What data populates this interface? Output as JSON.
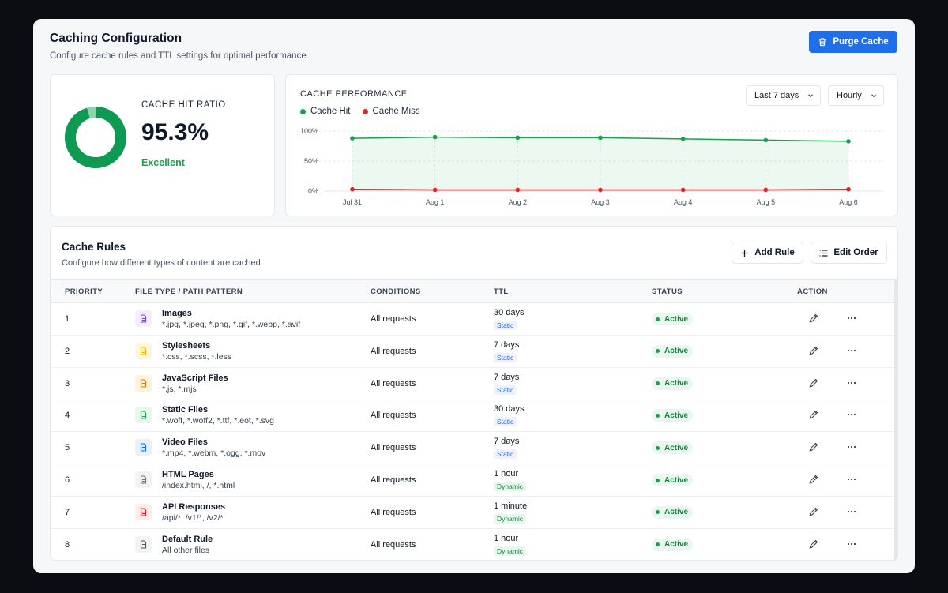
{
  "header": {
    "title": "Caching Configuration",
    "subtitle": "Configure cache rules and TTL settings for optimal performance",
    "purge_label": "Purge Cache"
  },
  "hit_ratio": {
    "label": "CACHE HIT RATIO",
    "value": "95.3%",
    "status": "Excellent",
    "fraction": 0.953
  },
  "performance": {
    "title": "CACHE PERFORMANCE",
    "range_select": "Last 7 days",
    "interval_select": "Hourly",
    "legend": [
      {
        "label": "Cache Hit",
        "color": "#16a34a"
      },
      {
        "label": "Cache Miss",
        "color": "#dc2626"
      }
    ]
  },
  "chart_data": {
    "type": "area",
    "categories": [
      "Jul 31",
      "Aug 1",
      "Aug 2",
      "Aug 3",
      "Aug 4",
      "Aug 5",
      "Aug 6"
    ],
    "y_ticks": [
      "100%",
      "50%",
      "0%"
    ],
    "ylim": [
      0,
      100
    ],
    "series": [
      {
        "name": "Cache Hit",
        "color": "#16a34a",
        "values": [
          88,
          90,
          89,
          89,
          87,
          85,
          83
        ]
      },
      {
        "name": "Cache Miss",
        "color": "#dc2626",
        "values": [
          3,
          2,
          2,
          2,
          2,
          2,
          3
        ]
      }
    ],
    "grid": true
  },
  "rules": {
    "title": "Cache Rules",
    "subtitle": "Configure how different types of content are cached",
    "add_label": "Add Rule",
    "edit_order_label": "Edit Order",
    "columns": {
      "priority": "PRIORITY",
      "file_type": "FILE TYPE / PATH PATTERN",
      "conditions": "CONDITIONS",
      "ttl": "TTL",
      "status": "STATUS",
      "action": "ACTION"
    },
    "rows": [
      {
        "priority": "1",
        "name": "Images",
        "pattern": "*.jpg, *.jpeg, *.png, *.gif, *.webp, *.avif",
        "conditions": "All requests",
        "ttl": "30 days",
        "tag": "Static",
        "status": "Active",
        "icon": "image-file-icon",
        "icon_color": "#7c3aed",
        "icon_bg": "#f3efff"
      },
      {
        "priority": "2",
        "name": "Stylesheets",
        "pattern": "*.css, *.scss, *.less",
        "conditions": "All requests",
        "ttl": "7 days",
        "tag": "Static",
        "status": "Active",
        "icon": "stylesheet-file-icon",
        "icon_color": "#eab308",
        "icon_bg": "#fef7e0"
      },
      {
        "priority": "3",
        "name": "JavaScript Files",
        "pattern": "*.js, *.mjs",
        "conditions": "All requests",
        "ttl": "7 days",
        "tag": "Static",
        "status": "Active",
        "icon": "javascript-file-icon",
        "icon_color": "#d97706",
        "icon_bg": "#fef3dc"
      },
      {
        "priority": "4",
        "name": "Static Files",
        "pattern": "*.woff, *.woff2, *.ttf, *.eot, *.svg",
        "conditions": "All requests",
        "ttl": "30 days",
        "tag": "Static",
        "status": "Active",
        "icon": "static-file-icon",
        "icon_color": "#16a34a",
        "icon_bg": "#e8f7ee"
      },
      {
        "priority": "5",
        "name": "Video Files",
        "pattern": "*.mp4, *.webm, *.ogg, *.mov",
        "conditions": "All requests",
        "ttl": "7 days",
        "tag": "Static",
        "status": "Active",
        "icon": "video-file-icon",
        "icon_color": "#2563eb",
        "icon_bg": "#e8f0fe"
      },
      {
        "priority": "6",
        "name": "HTML Pages",
        "pattern": "/index.html, /, *.html",
        "conditions": "All requests",
        "ttl": "1 hour",
        "tag": "Dynamic",
        "status": "Active",
        "icon": "html-file-icon",
        "icon_color": "#6b7280",
        "icon_bg": "#f1f3f5"
      },
      {
        "priority": "7",
        "name": "API Responses",
        "pattern": "/api/*, /v1/*, /v2/*",
        "conditions": "All requests",
        "ttl": "1 minute",
        "tag": "Dynamic",
        "status": "Active",
        "icon": "api-code-icon",
        "icon_color": "#dc2626",
        "icon_bg": "#fdecec"
      },
      {
        "priority": "8",
        "name": "Default Rule",
        "pattern": "All other files",
        "conditions": "All requests",
        "ttl": "1 hour",
        "tag": "Dynamic",
        "status": "Active",
        "icon": "default-file-icon",
        "icon_color": "#4b5563",
        "icon_bg": "#f1f3f5"
      }
    ]
  }
}
